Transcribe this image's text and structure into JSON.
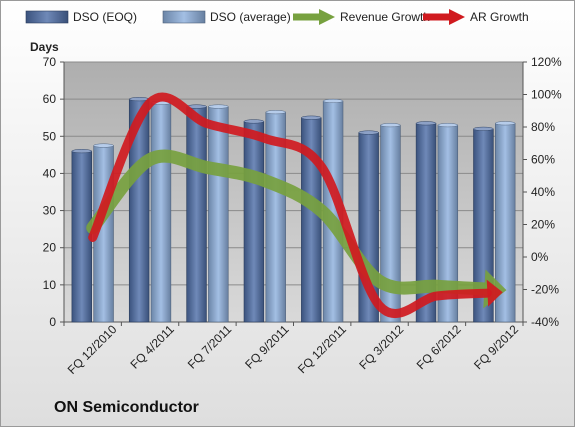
{
  "company": "ON Semiconductor",
  "chart_data": {
    "type": "bar",
    "title": "",
    "ylabel": "Days",
    "ylim": [
      0,
      70
    ],
    "yticks": [
      0,
      10,
      20,
      30,
      40,
      50,
      60,
      70
    ],
    "y2lim": [
      -0.4,
      1.2
    ],
    "y2ticks": [
      "-40%",
      "-20%",
      "0%",
      "20%",
      "40%",
      "60%",
      "80%",
      "100%",
      "120%"
    ],
    "grid": true,
    "legend": "top",
    "categories": [
      "FQ 12/2010",
      "FQ 4/2011",
      "FQ 7/2011",
      "FQ 9/2011",
      "FQ 12/2011",
      "FQ 3/2012",
      "FQ 6/2012",
      "FQ 9/2012"
    ],
    "series": [
      {
        "name": "DSO (EOQ)",
        "kind": "bar",
        "axis": "left",
        "color": "#4f6fa8",
        "values": [
          46,
          60,
          58,
          54,
          55,
          51,
          53.5,
          52
        ]
      },
      {
        "name": "DSO (average)",
        "kind": "bar",
        "axis": "left",
        "color": "#8fb1de",
        "values": [
          47.5,
          59,
          58,
          56.5,
          59.5,
          53,
          53,
          53.5
        ]
      },
      {
        "name": "Revenue Growth",
        "kind": "arrow-line",
        "axis": "right",
        "color": "#77a13f",
        "values": [
          0.18,
          0.6,
          0.55,
          0.47,
          0.28,
          -0.15,
          -0.18,
          -0.2
        ]
      },
      {
        "name": "AR Growth",
        "kind": "arrow-line",
        "axis": "right",
        "color": "#d01a1f",
        "values": [
          0.12,
          0.95,
          0.82,
          0.73,
          0.55,
          -0.3,
          -0.24,
          -0.22
        ]
      }
    ]
  }
}
